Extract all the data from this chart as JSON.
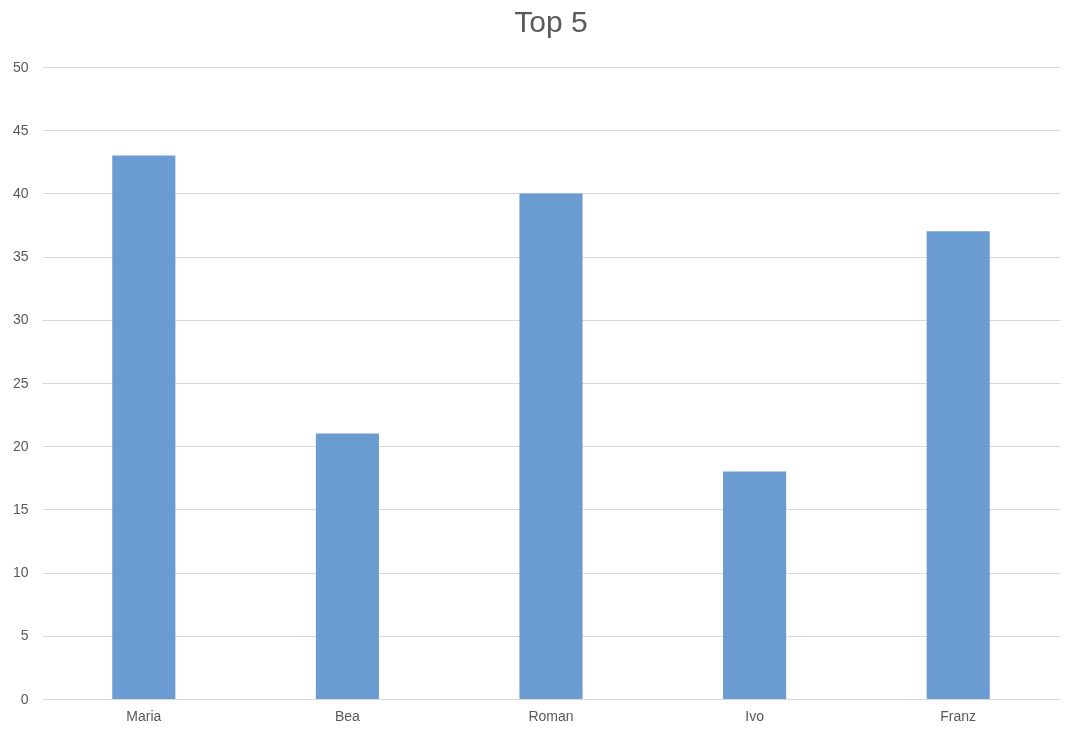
{
  "chart_data": {
    "type": "bar",
    "title": "Top 5",
    "categories": [
      "Maria",
      "Bea",
      "Roman",
      "Ivo",
      "Franz"
    ],
    "values": [
      43,
      21,
      40,
      18,
      37
    ],
    "color": "#6a9bd1",
    "ylim": [
      0,
      50
    ],
    "yticks": [
      0,
      5,
      10,
      15,
      20,
      25,
      30,
      35,
      40,
      45,
      50
    ],
    "grid": "y"
  }
}
